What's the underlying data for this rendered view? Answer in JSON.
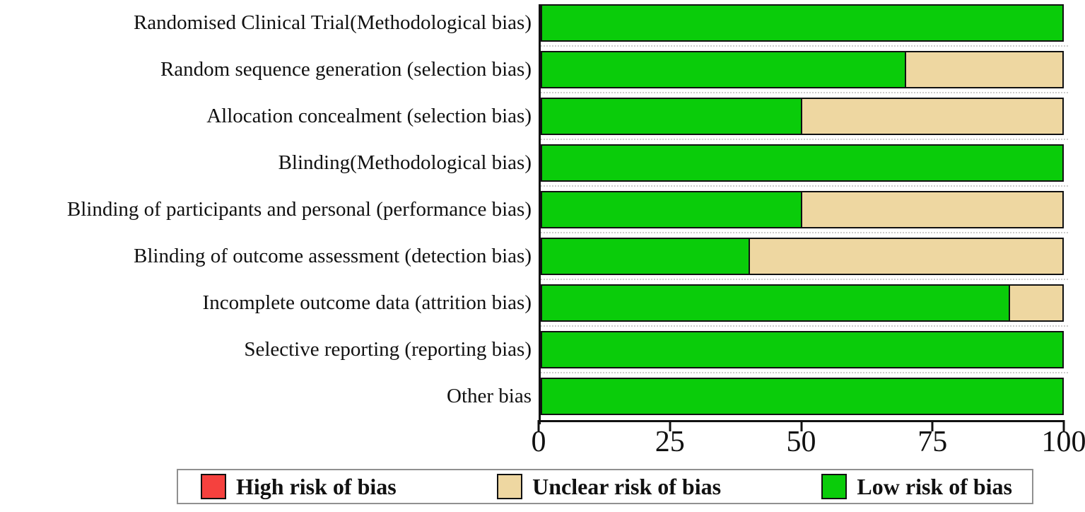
{
  "chart_data": {
    "type": "bar",
    "orientation": "horizontal",
    "stacked": true,
    "title": "",
    "xlabel": "",
    "ylabel": "",
    "xlim": [
      0,
      100
    ],
    "x_ticks": [
      "0",
      "25",
      "50",
      "75",
      "100"
    ],
    "x_tick_values": [
      0,
      25,
      50,
      75,
      100
    ],
    "grid": "dotted-row-separators",
    "legend_position": "bottom",
    "categories": [
      "Randomised Clinical Trial(Methodological bias)",
      "Random sequence generation (selection bias)",
      "Allocation concealment (selection bias)",
      "Blinding(Methodological bias)",
      "Blinding of participants and personal (performance bias)",
      "Blinding of outcome assessment (detection bias)",
      "Incomplete outcome data (attrition bias)",
      "Selective reporting (reporting bias)",
      "Other bias"
    ],
    "series": [
      {
        "name": "High risk of bias",
        "color": "#f5413e",
        "values": [
          0,
          0,
          0,
          0,
          0,
          0,
          0,
          0,
          0
        ]
      },
      {
        "name": "Unclear risk of bias",
        "color": "#eed7a1",
        "values": [
          0,
          30,
          50,
          0,
          50,
          60,
          10,
          0,
          0
        ]
      },
      {
        "name": "Low risk of bias",
        "color": "#0acc0a",
        "values": [
          100,
          70,
          50,
          100,
          50,
          40,
          90,
          100,
          100
        ]
      }
    ]
  },
  "legend": {
    "items": [
      {
        "label": "High risk of bias",
        "color": "#f5413e"
      },
      {
        "label": "Unclear risk of bias",
        "color": "#eed7a1"
      },
      {
        "label": "Low risk of bias",
        "color": "#0acc0a"
      }
    ]
  },
  "colors": {
    "bar_border": "#111111",
    "axis": "#111111",
    "separator_dotted": "#cccccc",
    "legend_border": "#909090",
    "background": "#ffffff"
  }
}
